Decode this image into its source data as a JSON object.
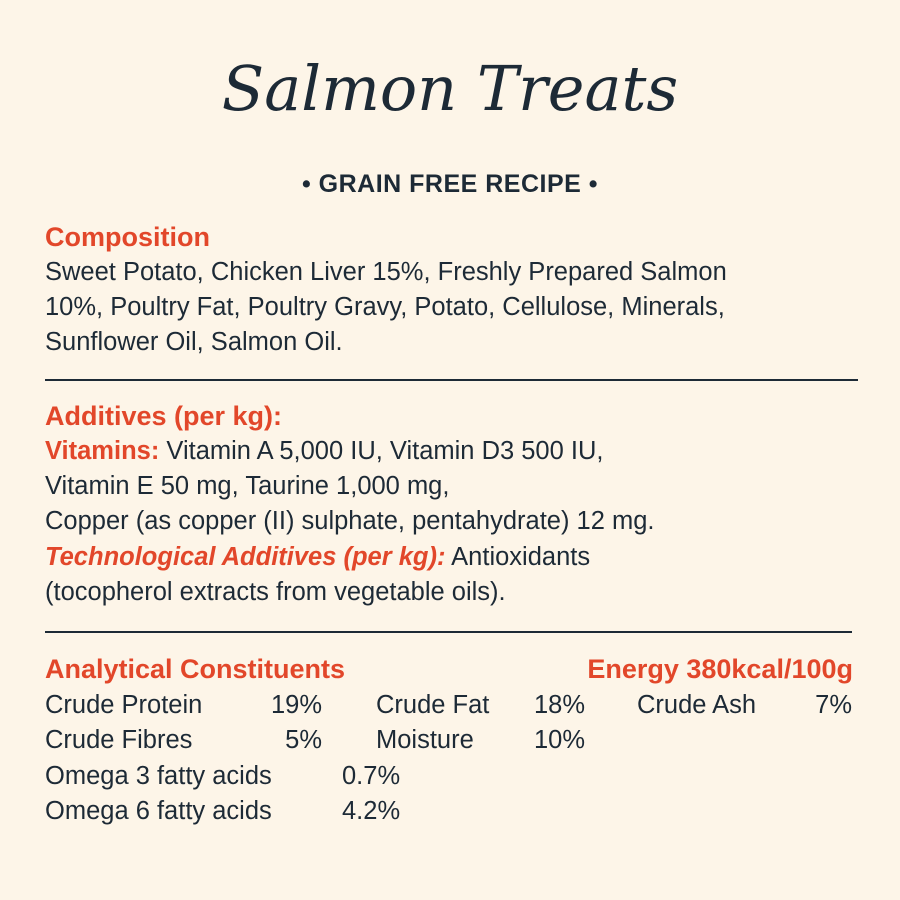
{
  "title": "Salmon Treats",
  "subtitle": "• GRAIN FREE RECIPE •",
  "composition": {
    "heading": "Composition",
    "lines": [
      "Sweet Potato, Chicken Liver 15%, Freshly Prepared Salmon",
      "10%, Poultry Fat, Poultry Gravy, Potato, Cellulose, Minerals,",
      "Sunflower Oil, Salmon Oil."
    ]
  },
  "additives": {
    "heading": "Additives (per kg):",
    "vitamins_label": "Vitamins:",
    "vitamins_line1": " Vitamin A 5,000 IU, Vitamin D3 500 IU,",
    "vitamins_line2": "Vitamin E 50 mg, Taurine 1,000 mg,",
    "vitamins_line3": "Copper (as copper (II) sulphate, pentahydrate) 12 mg.",
    "tech_label": "Technological Additives (per kg):",
    "tech_line1": " Antioxidants",
    "tech_line2": "(tocopherol extracts from vegetable oils)."
  },
  "analytical": {
    "heading": "Analytical Constituents",
    "energy": "Energy 380kcal/100g",
    "crude_protein": {
      "label": "Crude Protein",
      "value": "19%"
    },
    "crude_fat": {
      "label": "Crude Fat",
      "value": "18%"
    },
    "crude_ash": {
      "label": "Crude Ash",
      "value": "7%"
    },
    "crude_fibres": {
      "label": "Crude Fibres",
      "value": "5%"
    },
    "moisture": {
      "label": "Moisture",
      "value": "10%"
    },
    "omega3": {
      "label": "Omega 3 fatty acids",
      "value": "0.7%"
    },
    "omega6": {
      "label": "Omega 6 fatty acids",
      "value": "4.2%"
    }
  },
  "colors": {
    "background": "#fdf5e8",
    "accent": "#e2472a",
    "text": "#1d2a36"
  }
}
